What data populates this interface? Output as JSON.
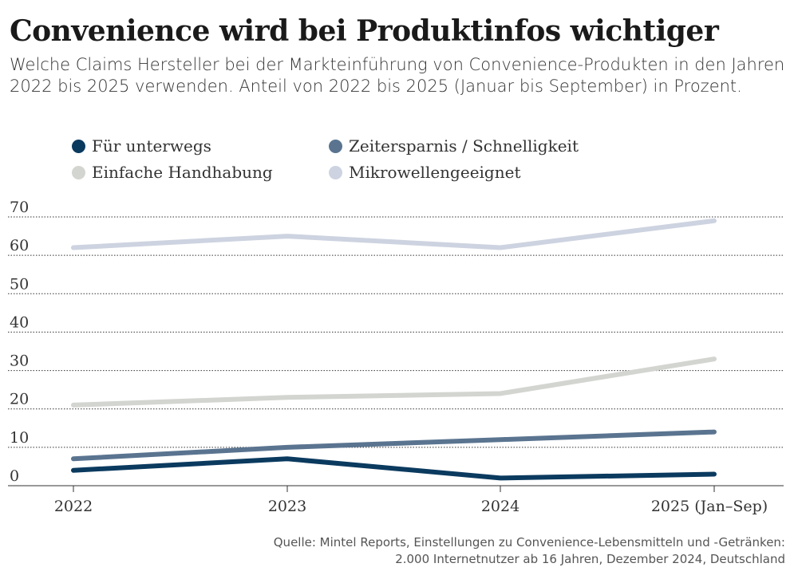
{
  "title": "Convenience wird bei Produktinfos wichtiger",
  "subtitle": "Welche Claims Hersteller bei der Markteinführung von Convenience-Produkten in den Jahren 2022 bis 2025 verwenden. Anteil von 2022 bis 2025 (Januar bis September) in Prozent.",
  "source_line1": "Quelle: Mintel Reports, Einstellungen zu Convenience-Lebensmitteln und -Getränken:",
  "source_line2": "2.000 Internetnutzer ab 16 Jahren, Dezember 2024, Deutschland",
  "chart_data": {
    "type": "line",
    "categories": [
      "2022",
      "2023",
      "2024",
      "2025 (Jan–Sep)"
    ],
    "ylim": [
      0,
      70
    ],
    "yticks": [
      "0",
      "10",
      "20",
      "30",
      "40",
      "50",
      "60",
      "70"
    ],
    "grid": true,
    "legend_position": "top",
    "series": [
      {
        "name": "Für unterwegs",
        "color": "#0b3a5f",
        "values": [
          4,
          7,
          2,
          3
        ]
      },
      {
        "name": "Zeitersparnis / Schnelligkeit",
        "color": "#5a7490",
        "values": [
          7,
          10,
          12,
          14
        ]
      },
      {
        "name": "Einfache Handhabung",
        "color": "#d3d5d0",
        "values": [
          21,
          23,
          24,
          33
        ]
      },
      {
        "name": "Mikrowellengeeignet",
        "color": "#cdd3e0",
        "values": [
          62,
          65,
          62,
          69
        ]
      }
    ]
  }
}
